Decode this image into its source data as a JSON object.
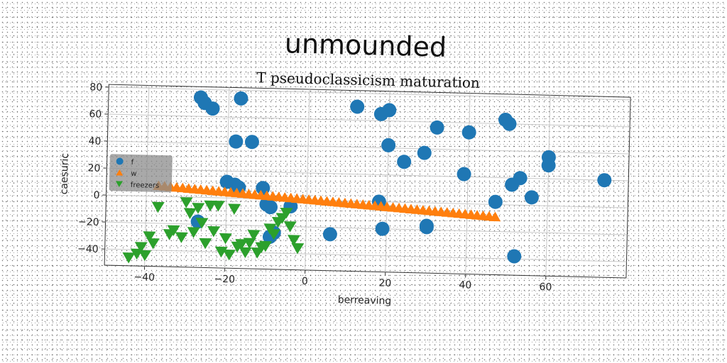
{
  "figure": {
    "suptitle": "unmounded"
  },
  "chart_data": {
    "type": "scatter",
    "title": "T pseudoclassicism maturation",
    "xlabel": "berreaving",
    "ylabel": "caesuric",
    "xlim": [
      -50,
      80
    ],
    "ylim": [
      -52,
      82
    ],
    "xticks": [
      -40,
      -20,
      0,
      20,
      40,
      60
    ],
    "yticks": [
      -40,
      -20,
      0,
      20,
      40,
      60,
      80
    ],
    "grid": true,
    "legend_position": "center-left",
    "series": [
      {
        "name": "f",
        "marker": "circle",
        "color": "#1f77b4",
        "x": [
          -27,
          -26,
          -24,
          -17,
          -18,
          -14,
          -20,
          -18,
          -17,
          -11,
          -10,
          -9,
          -8,
          -9,
          -4,
          -27,
          6,
          12,
          18,
          20,
          20,
          18,
          19,
          24,
          29,
          30,
          32,
          30,
          40,
          39,
          49,
          50,
          53,
          51,
          56,
          60,
          60,
          47,
          52,
          74
        ],
        "y": [
          74,
          70,
          66,
          74,
          42,
          42,
          12,
          10,
          8,
          8,
          -4,
          -6,
          -25,
          -28,
          -5,
          -18,
          -25,
          70,
          65,
          68,
          42,
          0,
          -20,
          30,
          37,
          -18,
          56,
          -17,
          53,
          22,
          63,
          60,
          20,
          15,
          6,
          36,
          30,
          2,
          -38,
          20
        ]
      },
      {
        "name": "w",
        "marker": "triangle-up",
        "color": "#ff7f0e",
        "x_start": -37,
        "x_end": 47,
        "count": 57,
        "y_start": 8,
        "y_end": -9
      },
      {
        "name": "freezers",
        "marker": "triangle-down",
        "color": "#2ca02c",
        "x": [
          -44,
          -42,
          -41,
          -40,
          -39,
          -38,
          -37,
          -34,
          -33,
          -31,
          -30,
          -29,
          -28,
          -27,
          -26,
          -25,
          -24,
          -23,
          -22,
          -21,
          -20,
          -19,
          -18,
          -17,
          -16,
          -15,
          -14,
          -13,
          -12,
          -11,
          -10,
          -9,
          -8,
          -7,
          -6,
          -5,
          -4,
          -3,
          -2
        ],
        "y": [
          -46,
          -43,
          -38,
          -44,
          -30,
          -35,
          -8,
          -28,
          -25,
          -30,
          -4,
          -12,
          -26,
          -8,
          -19,
          -34,
          -6,
          -25,
          -6,
          -40,
          -30,
          -42,
          -8,
          -36,
          -34,
          -40,
          -33,
          -27,
          -40,
          -36,
          -35,
          -22,
          -26,
          -17,
          -14,
          -10,
          -20,
          -30,
          -36
        ]
      }
    ]
  }
}
